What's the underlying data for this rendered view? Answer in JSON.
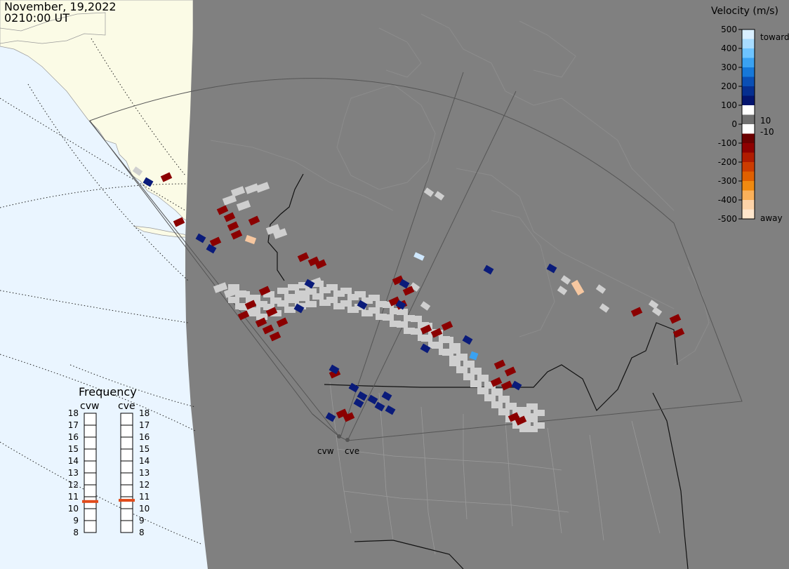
{
  "header": {
    "date": "November, 19,2022",
    "time": "0210:00 UT"
  },
  "legend": {
    "title": "Velocity (m/s)",
    "ticks_positive": [
      "500",
      "400",
      "300",
      "200",
      "100",
      "0"
    ],
    "ticks_negative": [
      "-100",
      "-200",
      "-300",
      "-400",
      "-500"
    ],
    "toward_label": "toward",
    "away_label": "away",
    "pos_threshold_label": "10",
    "neg_threshold_label": "-10",
    "colors": [
      "#d9efff",
      "#a8dcff",
      "#6ec4ff",
      "#3aa2f2",
      "#1678d9",
      "#0a4fb5",
      "#062f90",
      "#04156e",
      "#ffffff",
      "#707070",
      "#ffffff",
      "#6b0000",
      "#8e0000",
      "#b01c00",
      "#cc3c00",
      "#e06000",
      "#f08a10",
      "#fbb15a",
      "#fdd3a8",
      "#ffe6cc"
    ]
  },
  "frequency_panel": {
    "title": "Frequency",
    "radars": [
      "cvw",
      "cve"
    ],
    "ticks": [
      "18",
      "17",
      "16",
      "15",
      "14",
      "13",
      "12",
      "11",
      "10",
      "9",
      "8"
    ],
    "values_mhz": [
      10.6,
      10.7
    ],
    "marker_color": "#e04a1a"
  },
  "map": {
    "ocean_color": "#eaf5ff",
    "land_day_color": "#fbfbe6",
    "night_color": "#808080",
    "fov_color": "#555555",
    "backscatter_color": "#cfcfcf",
    "radar_labels": [
      "cvw",
      "cve"
    ]
  }
}
